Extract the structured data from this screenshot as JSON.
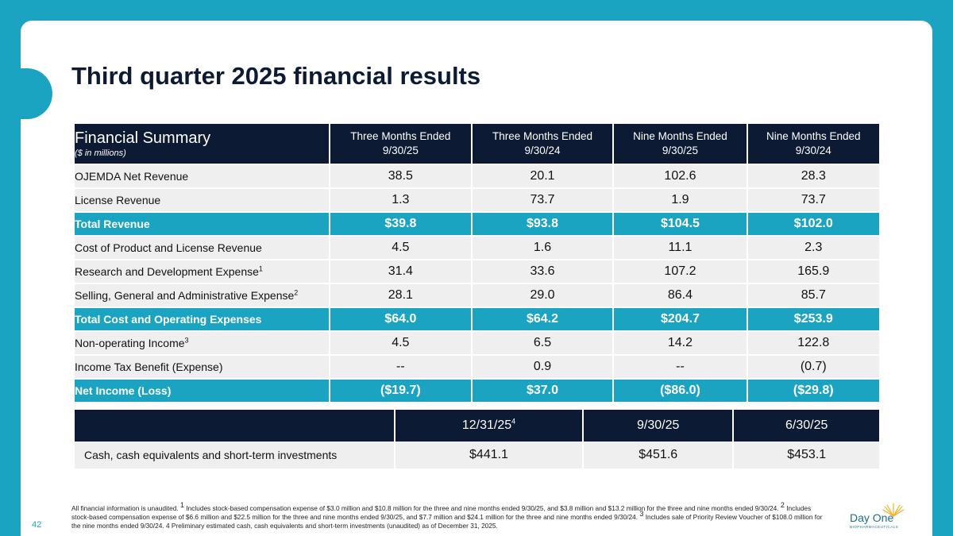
{
  "slide": {
    "title": "Third quarter 2025 financial results",
    "page_number": "42"
  },
  "financial_table": {
    "title": "Financial Summary",
    "subtitle": "($ in millions)",
    "columns": [
      {
        "line1": "Three Months Ended",
        "line2": "9/30/25"
      },
      {
        "line1": "Three Months Ended",
        "line2": "9/30/24"
      },
      {
        "line1": "Nine Months Ended",
        "line2": "9/30/25"
      },
      {
        "line1": "Nine Months Ended",
        "line2": "9/30/24"
      }
    ],
    "rows": [
      {
        "label": "OJEMDA Net Revenue",
        "sup": "",
        "values": [
          "38.5",
          "20.1",
          "102.6",
          "28.3"
        ],
        "total": false
      },
      {
        "label": "License Revenue",
        "sup": "",
        "values": [
          "1.3",
          "73.7",
          "1.9",
          "73.7"
        ],
        "total": false
      },
      {
        "label": "Total Revenue",
        "sup": "",
        "values": [
          "$39.8",
          "$93.8",
          "$104.5",
          "$102.0"
        ],
        "total": true
      },
      {
        "label": "Cost of Product and License Revenue",
        "sup": "",
        "values": [
          "4.5",
          "1.6",
          "11.1",
          "2.3"
        ],
        "total": false
      },
      {
        "label": "Research and Development Expense",
        "sup": "1",
        "values": [
          "31.4",
          "33.6",
          "107.2",
          "165.9"
        ],
        "total": false
      },
      {
        "label": "Selling, General and Administrative Expense",
        "sup": "2",
        "values": [
          "28.1",
          "29.0",
          "86.4",
          "85.7"
        ],
        "total": false
      },
      {
        "label": "Total Cost and Operating Expenses",
        "sup": "",
        "values": [
          "$64.0",
          "$64.2",
          "$204.7",
          "$253.9"
        ],
        "total": true
      },
      {
        "label": "Non-operating Income",
        "sup": "3",
        "values": [
          "4.5",
          "6.5",
          "14.2",
          "122.8"
        ],
        "total": false
      },
      {
        "label": "Income Tax Benefit (Expense)",
        "sup": "",
        "values": [
          "--",
          "0.9",
          "--",
          "(0.7)"
        ],
        "total": false
      },
      {
        "label": "Net Income (Loss)",
        "sup": "",
        "values": [
          "($19.7)",
          "$37.0",
          "($86.0)",
          "($29.8)"
        ],
        "total": true
      }
    ]
  },
  "cash_table": {
    "columns": [
      {
        "label": "12/31/25",
        "sup": "4"
      },
      {
        "label": "9/30/25",
        "sup": ""
      },
      {
        "label": "6/30/25",
        "sup": ""
      }
    ],
    "row": {
      "label": "Cash, cash equivalents and short-term investments",
      "values": [
        "$441.1",
        "$451.6",
        "$453.1"
      ]
    }
  },
  "footnote": {
    "p1": "All financial information is unaudited. ",
    "s1": "1",
    "p2": " Includes stock-based compensation expense of $3.0 million and $10.8 million for the three and nine months ended 9/30/25, and $3.8 million and $13.2 million for the three and nine months ended 9/30/24. ",
    "s2": "2",
    "p3": " Includes stock-based compensation expense of $6.6 million and $22.5 million for the three and nine months ended 9/30/25, and $7.7 million and $24.1 million for the three and nine months ended 9/30/24. ",
    "s3": "3",
    "p4": " Includes sale of Priority Review Voucher of $108.0 million for the nine months ended 9/30/24. 4 Preliminary estimated cash, cash equivalents and short-term investments (unaudited) as of December 31, 2025."
  },
  "logo": {
    "name": "Day One",
    "tagline": "BIOPHARMACEUTICALS",
    "sun_color": "#f2b227"
  },
  "colors": {
    "accent": "#1ba3c2",
    "header_navy": "#0c1a33",
    "row_gray": "#efefef"
  }
}
